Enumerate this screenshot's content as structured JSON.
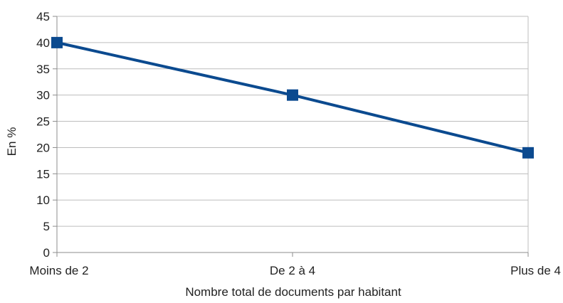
{
  "chart_data": {
    "type": "line",
    "title": "",
    "xlabel": "Nombre total de documents par habitant",
    "ylabel": "En %",
    "categories": [
      "Moins de 2",
      "De 2 à 4",
      "Plus de 4"
    ],
    "series": [
      {
        "values": [
          40,
          30,
          19
        ],
        "color": "#0b4a8f",
        "marker": "square"
      }
    ],
    "ylim": [
      0,
      45
    ],
    "yticks": [
      0,
      5,
      10,
      15,
      20,
      25,
      30,
      35,
      40,
      45
    ],
    "grid": "horizontal",
    "legend": "none"
  }
}
